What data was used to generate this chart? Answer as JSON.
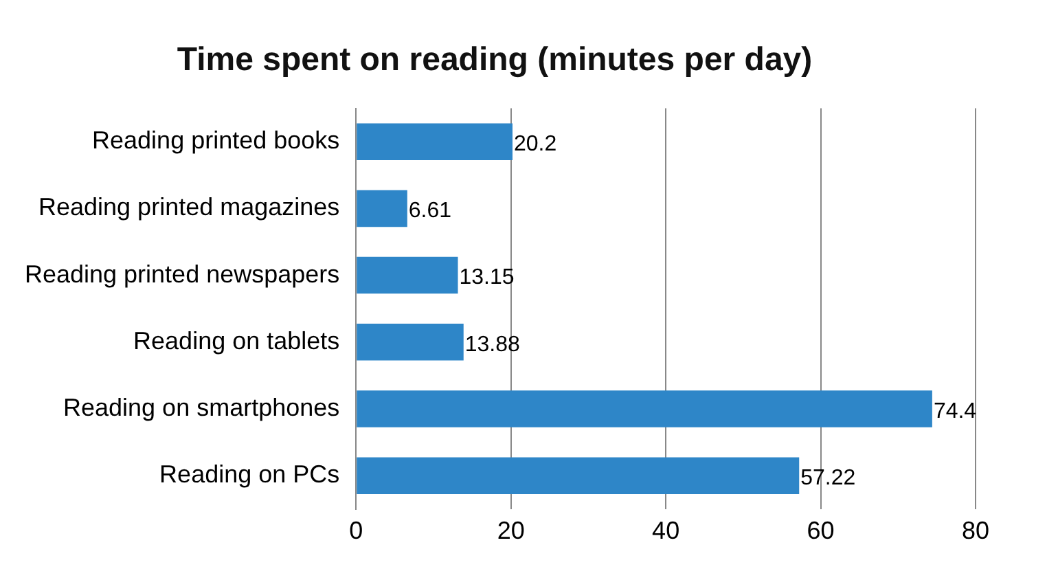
{
  "chart_data": {
    "type": "bar",
    "orientation": "horizontal",
    "title": "Time spent on reading (minutes per day)",
    "categories": [
      "Reading printed books",
      "Reading printed magazines",
      "Reading printed newspapers",
      "Reading on tablets",
      "Reading on smartphones",
      "Reading on PCs"
    ],
    "values": [
      20.2,
      6.61,
      13.15,
      13.88,
      74.4,
      57.22
    ],
    "color": "#2e86c8",
    "xlim": [
      0,
      80
    ],
    "xticks": [
      0,
      20,
      40,
      60,
      80
    ],
    "grid": "x",
    "data_labels": true
  }
}
